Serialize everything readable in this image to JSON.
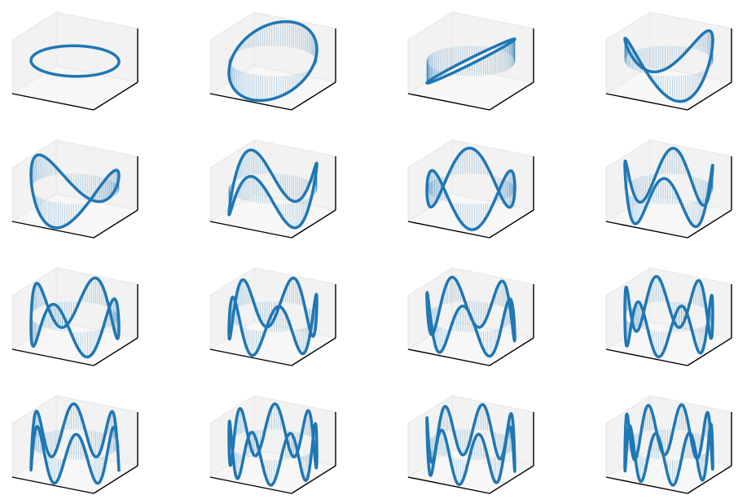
{
  "chart_data": [
    {
      "type": "line3d",
      "frequency": 0,
      "phase": 0,
      "color": "#1f77b4"
    },
    {
      "type": "line3d",
      "frequency": 1,
      "phase": 0,
      "color": "#1f77b4"
    },
    {
      "type": "line3d",
      "frequency": 1,
      "phase": 90,
      "color": "#1f77b4"
    },
    {
      "type": "line3d",
      "frequency": 2,
      "phase": 0,
      "color": "#1f77b4"
    },
    {
      "type": "line3d",
      "frequency": 2,
      "phase": 90,
      "color": "#1f77b4"
    },
    {
      "type": "line3d",
      "frequency": 3,
      "phase": 0,
      "color": "#1f77b4"
    },
    {
      "type": "line3d",
      "frequency": 3,
      "phase": 90,
      "color": "#1f77b4"
    },
    {
      "type": "line3d",
      "frequency": 4,
      "phase": 0,
      "color": "#1f77b4"
    },
    {
      "type": "line3d",
      "frequency": 4,
      "phase": 90,
      "color": "#1f77b4"
    },
    {
      "type": "line3d",
      "frequency": 5,
      "phase": 0,
      "color": "#1f77b4"
    },
    {
      "type": "line3d",
      "frequency": 5,
      "phase": 90,
      "color": "#1f77b4"
    },
    {
      "type": "line3d",
      "frequency": 6,
      "phase": 0,
      "color": "#1f77b4"
    },
    {
      "type": "line3d",
      "frequency": 6,
      "phase": 90,
      "color": "#1f77b4"
    },
    {
      "type": "line3d",
      "frequency": 7,
      "phase": 0,
      "color": "#1f77b4"
    },
    {
      "type": "line3d",
      "frequency": 7,
      "phase": 90,
      "color": "#1f77b4"
    },
    {
      "type": "line3d",
      "frequency": 8,
      "phase": 0,
      "color": "#1f77b4"
    }
  ]
}
